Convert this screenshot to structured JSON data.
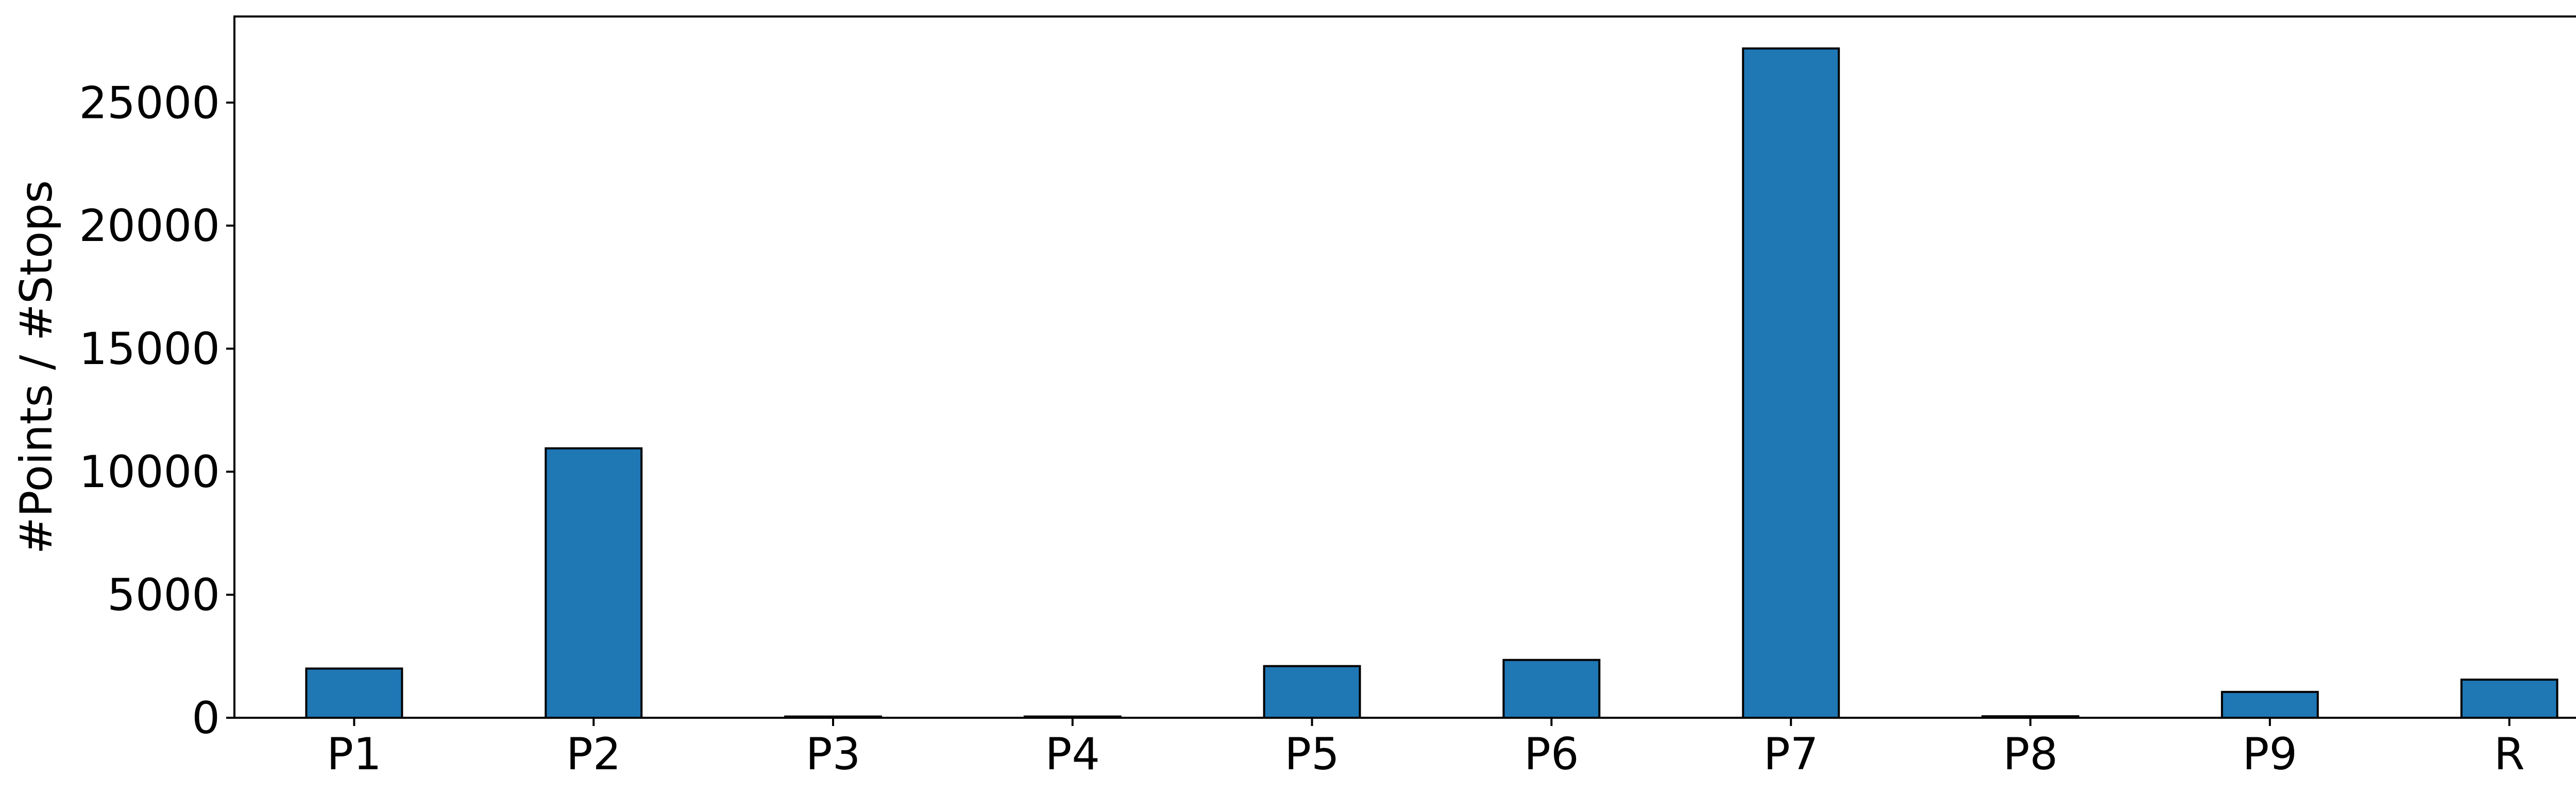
{
  "chart_data": {
    "type": "bar",
    "title": "",
    "xlabel": "",
    "ylabel": "#Points / #Stops",
    "categories": [
      "P1",
      "P2",
      "P3",
      "P4",
      "P5",
      "P6",
      "P7",
      "P8",
      "P9",
      "R"
    ],
    "values": [
      2000,
      10950,
      50,
      50,
      2100,
      2350,
      27200,
      60,
      1050,
      1550
    ],
    "ylim": [
      0,
      28500
    ],
    "yticks": [
      0,
      5000,
      10000,
      15000,
      20000,
      25000
    ],
    "ytick_labels": [
      "0",
      "5000",
      "10000",
      "15000",
      "20000",
      "25000"
    ],
    "grid": false,
    "legend": "none",
    "colors": {
      "bar": "#1f77b4",
      "edge": "#000000"
    }
  }
}
